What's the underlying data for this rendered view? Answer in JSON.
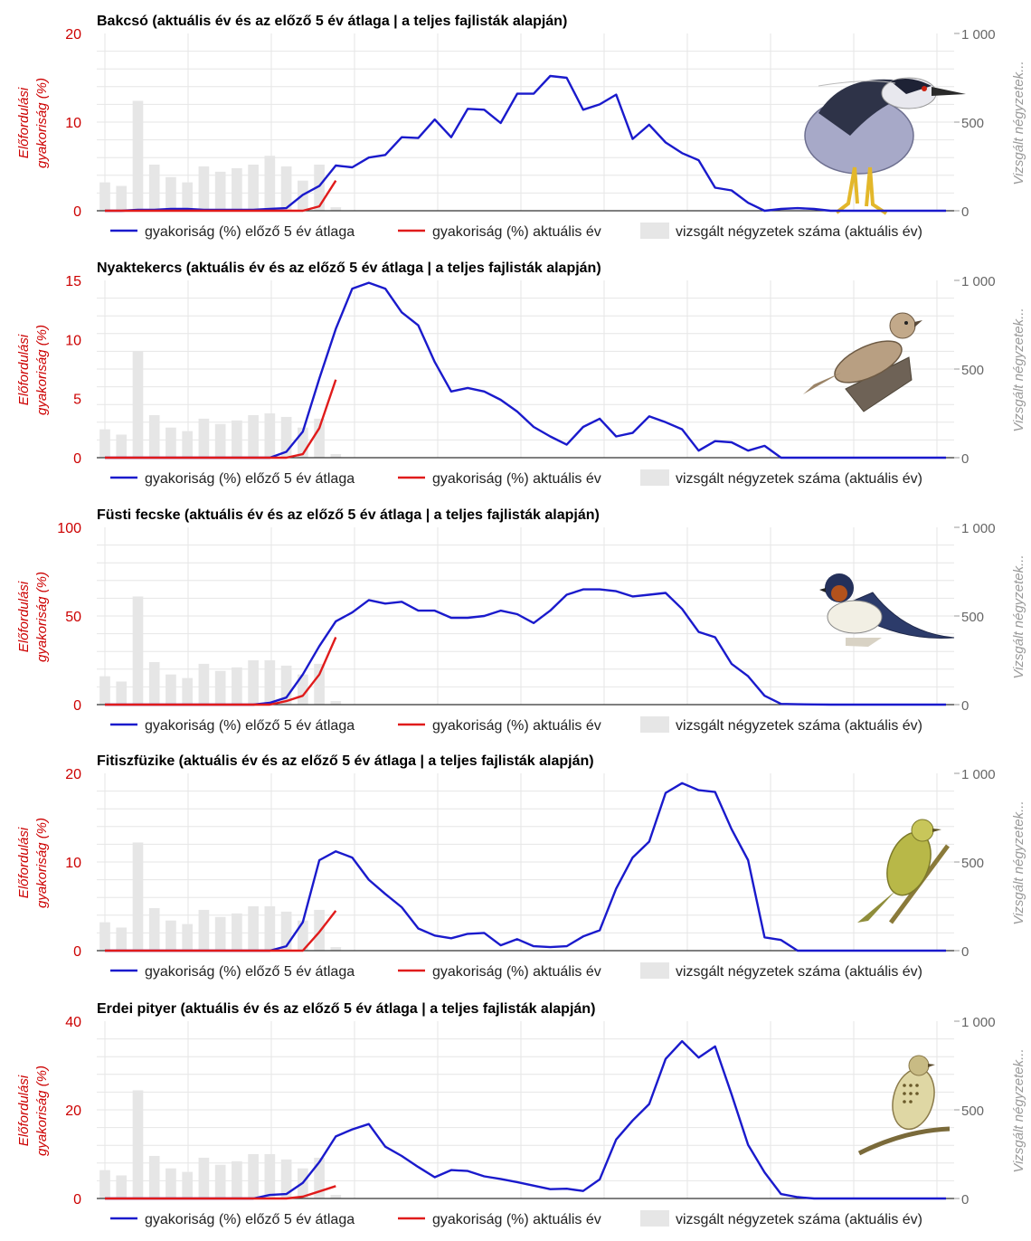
{
  "colors": {
    "avg_line": "#1a1acc",
    "current_line": "#e01b1b",
    "bars": "#e6e6e6",
    "grid": "#e6e6e6",
    "axis_left": "#cc0000",
    "axis_right": "#666666"
  },
  "legend": {
    "avg": "gyakoriság (%) előző 5 év átlaga",
    "current": "gyakoriság (%) aktuális év",
    "bars": "vizsgált négyzetek száma (aktuális év)"
  },
  "axis_titles": {
    "left_line1": "Előfordulási",
    "left_line2": "gyakoriság (%)",
    "right": "Vizsgált négyzetek..."
  },
  "chart_data": [
    {
      "type": "line",
      "species": "Bakcsó",
      "bird_icon": "heron-icon",
      "title": "Bakcsó (aktuális év és az előző 5 év átlaga | a teljes fajlisták alapján)",
      "ylim": [
        0,
        20
      ],
      "yticks": [
        0,
        10,
        20
      ],
      "y2lim": [
        0,
        1000
      ],
      "y2ticks": [
        "0",
        "500",
        "1 000"
      ],
      "series": [
        {
          "name": "gyakoriság (%) előző 5 év átlaga",
          "values": [
            0,
            0,
            0.1,
            0.1,
            0.2,
            0.2,
            0.1,
            0.1,
            0.1,
            0.1,
            0.2,
            0.3,
            1.8,
            2.8,
            5.1,
            4.9,
            6,
            6.3,
            8.3,
            8.2,
            10.3,
            8.3,
            11.5,
            11.4,
            9.9,
            13.2,
            13.2,
            15.2,
            15,
            11.4,
            12,
            13.1,
            8.1,
            9.7,
            7.7,
            6.5,
            5.7,
            2.6,
            2.3,
            0.9,
            0,
            0.2,
            0.3,
            0.2,
            0,
            0,
            0,
            0,
            0,
            0,
            0,
            0
          ]
        },
        {
          "name": "gyakoriság (%) aktuális év",
          "values": [
            0,
            0,
            0,
            0,
            0,
            0,
            0,
            0,
            0,
            0,
            0,
            0,
            0,
            0.5,
            3.4
          ]
        }
      ],
      "bars": [
        160,
        140,
        620,
        260,
        190,
        160,
        250,
        220,
        240,
        260,
        310,
        250,
        170,
        260,
        20
      ]
    },
    {
      "type": "line",
      "species": "Nyaktekercs",
      "bird_icon": "wryneck-icon",
      "title": "Nyaktekercs (aktuális év és az előző 5 év átlaga | a teljes fajlisták alapján)",
      "ylim": [
        0,
        15
      ],
      "yticks": [
        0,
        5,
        10,
        15
      ],
      "y2lim": [
        0,
        1000
      ],
      "y2ticks": [
        "0",
        "500",
        "1 000"
      ],
      "series": [
        {
          "name": "gyakoriság (%) előző 5 év átlaga",
          "values": [
            0,
            0,
            0,
            0,
            0,
            0,
            0,
            0,
            0,
            0,
            0,
            0.5,
            2.2,
            6.7,
            10.9,
            14.3,
            14.8,
            14.3,
            12.3,
            11.2,
            8.1,
            5.6,
            5.9,
            5.6,
            4.9,
            3.9,
            2.6,
            1.8,
            1.1,
            2.6,
            3.3,
            1.8,
            2.1,
            3.5,
            3,
            2.4,
            0.6,
            1.4,
            1.3,
            0.6,
            1,
            0,
            0,
            0,
            0,
            0,
            0,
            0,
            0,
            0,
            0,
            0
          ]
        },
        {
          "name": "gyakoriság (%) aktuális év",
          "values": [
            0,
            0,
            0,
            0,
            0,
            0,
            0,
            0,
            0,
            0,
            0,
            0,
            0.3,
            2.5,
            6.6
          ]
        }
      ],
      "bars": [
        160,
        130,
        600,
        240,
        170,
        150,
        220,
        190,
        210,
        240,
        250,
        230,
        170,
        220,
        20
      ]
    },
    {
      "type": "line",
      "species": "Füsti fecske",
      "bird_icon": "swallow-icon",
      "title": "Füsti fecske (aktuális év és az előző 5 év átlaga | a teljes fajlisták alapján)",
      "ylim": [
        0,
        100
      ],
      "yticks": [
        0,
        50,
        100
      ],
      "y2lim": [
        0,
        1000
      ],
      "y2ticks": [
        "0",
        "500",
        "1 000"
      ],
      "series": [
        {
          "name": "gyakoriság (%) előző 5 év átlaga",
          "values": [
            0,
            0,
            0,
            0,
            0,
            0,
            0,
            0,
            0,
            0,
            1,
            4,
            17,
            33,
            47,
            52,
            59,
            57,
            58,
            53,
            53,
            49,
            49,
            50,
            53,
            51,
            46,
            53,
            62,
            65,
            65,
            64,
            61,
            62,
            63,
            54,
            41,
            38,
            23,
            16,
            5,
            0.4,
            0.2,
            0.1,
            0,
            0,
            0,
            0,
            0,
            0,
            0,
            0
          ]
        },
        {
          "name": "gyakoriság (%) aktuális év",
          "values": [
            0,
            0,
            0,
            0,
            0,
            0,
            0,
            0,
            0,
            0,
            0,
            2,
            5,
            17,
            38
          ]
        }
      ],
      "bars": [
        160,
        130,
        610,
        240,
        170,
        150,
        230,
        190,
        210,
        250,
        250,
        220,
        170,
        230,
        20
      ]
    },
    {
      "type": "line",
      "species": "Fitiszfüzike",
      "bird_icon": "warbler-icon",
      "title": "Fitiszfüzike (aktuális év és az előző 5 év átlaga | a teljes fajlisták alapján)",
      "ylim": [
        0,
        20
      ],
      "yticks": [
        0,
        10,
        20
      ],
      "y2lim": [
        0,
        1000
      ],
      "y2ticks": [
        "0",
        "500",
        "1 000"
      ],
      "series": [
        {
          "name": "gyakoriság (%) előző 5 év átlaga",
          "values": [
            0,
            0,
            0,
            0,
            0,
            0,
            0,
            0,
            0,
            0,
            0,
            0.5,
            3.2,
            10.2,
            11.2,
            10.5,
            8,
            6.4,
            4.9,
            2.5,
            1.7,
            1.4,
            1.9,
            2,
            0.6,
            1.3,
            0.5,
            0.4,
            0.5,
            1.6,
            2.3,
            7,
            10.5,
            12.3,
            17.8,
            18.9,
            18.1,
            17.9,
            13.7,
            10.2,
            1.5,
            1.2,
            0,
            0,
            0,
            0,
            0,
            0,
            0,
            0,
            0,
            0
          ]
        },
        {
          "name": "gyakoriság (%) aktuális év",
          "values": [
            0,
            0,
            0,
            0,
            0,
            0,
            0,
            0,
            0,
            0,
            0,
            0,
            0,
            2.1,
            4.5
          ]
        }
      ],
      "bars": [
        160,
        130,
        610,
        240,
        170,
        150,
        230,
        190,
        210,
        250,
        250,
        220,
        170,
        230,
        20
      ]
    },
    {
      "type": "line",
      "species": "Erdei pityer",
      "bird_icon": "pipit-icon",
      "title": "Erdei pityer (aktuális év és az előző 5 év átlaga | a teljes fajlisták alapján)",
      "ylim": [
        0,
        40
      ],
      "yticks": [
        0,
        20,
        40
      ],
      "y2lim": [
        0,
        1000
      ],
      "y2ticks": [
        "0",
        "500",
        "1 000"
      ],
      "series": [
        {
          "name": "gyakoriság (%) előző 5 év átlaga",
          "values": [
            0,
            0,
            0,
            0,
            0,
            0,
            0,
            0,
            0,
            0,
            0.8,
            1,
            3.5,
            8.2,
            14,
            15.6,
            16.8,
            11.7,
            9.6,
            7.1,
            4.8,
            6.4,
            6.2,
            5,
            4.4,
            3.7,
            2.9,
            2.1,
            2.2,
            1.7,
            4.3,
            13.3,
            17.6,
            21.3,
            31.5,
            35.5,
            31.8,
            34.3,
            23.5,
            12.1,
            5.9,
            1,
            0.3,
            0,
            0,
            0,
            0,
            0,
            0,
            0,
            0,
            0
          ]
        },
        {
          "name": "gyakoriság (%) aktuális év",
          "values": [
            0,
            0,
            0,
            0,
            0,
            0,
            0,
            0,
            0,
            0,
            0,
            0,
            0.4,
            1.6,
            2.8
          ]
        }
      ],
      "bars": [
        160,
        130,
        610,
        240,
        170,
        150,
        230,
        190,
        210,
        250,
        250,
        220,
        170,
        230,
        20
      ]
    }
  ]
}
